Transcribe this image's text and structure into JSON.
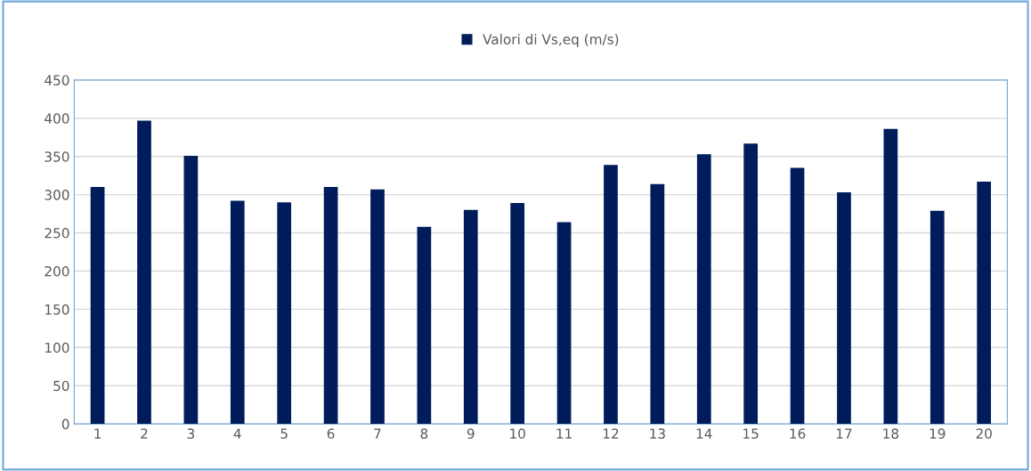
{
  "chart_data": {
    "type": "bar",
    "categories": [
      "1",
      "2",
      "3",
      "4",
      "5",
      "6",
      "7",
      "8",
      "9",
      "10",
      "11",
      "12",
      "13",
      "14",
      "15",
      "16",
      "17",
      "18",
      "19",
      "20"
    ],
    "series": [
      {
        "name": "Valori di Vs,eq (m/s)",
        "color": "#001c5a",
        "values": [
          310,
          397,
          351,
          292,
          290,
          310,
          307,
          258,
          280,
          289,
          264,
          339,
          314,
          353,
          367,
          335,
          303,
          386,
          279,
          317
        ]
      }
    ],
    "ylim": [
      0,
      450
    ],
    "yticks": [
      0,
      50,
      100,
      150,
      200,
      250,
      300,
      350,
      400,
      450
    ],
    "grid": "y",
    "legend": "top"
  }
}
